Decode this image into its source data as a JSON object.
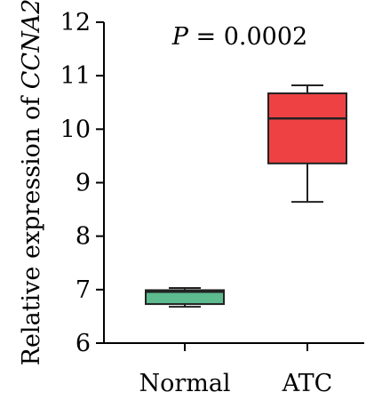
{
  "chart_data": {
    "type": "box",
    "title": "",
    "annotation": {
      "label": "P",
      "equals": " = ",
      "value": "0.0002"
    },
    "ylabel": {
      "prefix": "Relative expression of ",
      "gene": "CCNA2"
    },
    "xlabel": "",
    "ylim": [
      6,
      12
    ],
    "yticks": [
      6,
      7,
      8,
      9,
      10,
      11,
      12
    ],
    "categories": [
      "Normal",
      "ATC"
    ],
    "boxes": [
      {
        "name": "Normal",
        "min": 6.68,
        "q1": 6.73,
        "median": 6.96,
        "q3": 6.99,
        "max": 7.03,
        "color": "#5DBB8F"
      },
      {
        "name": "ATC",
        "min": 8.64,
        "q1": 9.36,
        "median": 10.2,
        "q3": 10.67,
        "max": 10.82,
        "color": "#EE4143"
      }
    ],
    "legend": "none",
    "grid": false
  }
}
